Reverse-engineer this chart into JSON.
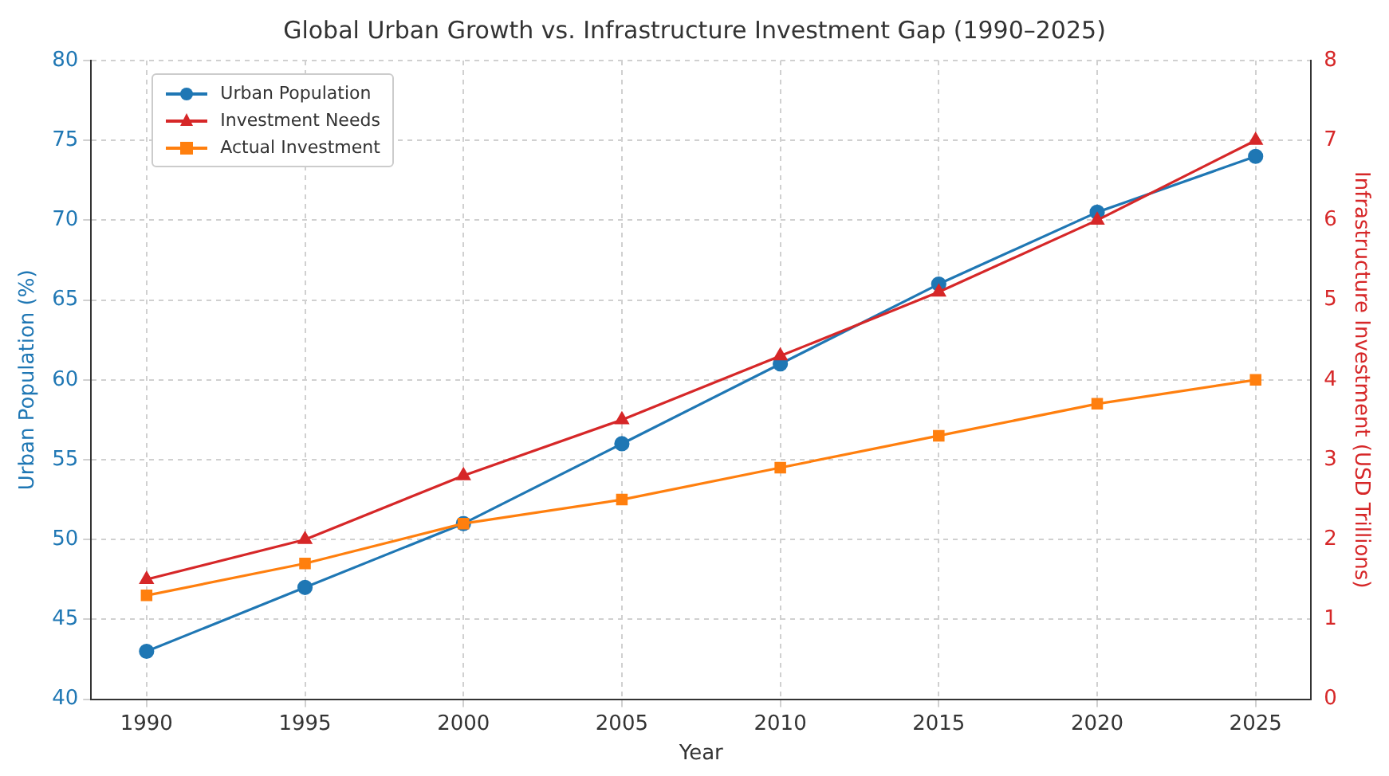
{
  "chart_data": {
    "type": "line",
    "title": "Global Urban Growth vs. Infrastructure Investment Gap (1990–2025)",
    "xlabel": "Year",
    "ylabel": "Urban Population (%)",
    "y2label": "Infrastructure Investment (USD Trillions)",
    "x": [
      1990,
      1995,
      2000,
      2005,
      2010,
      2015,
      2020,
      2025
    ],
    "xlim": [
      1988.25,
      2026.75
    ],
    "xticks": [
      1990,
      1995,
      2000,
      2005,
      2010,
      2015,
      2020,
      2025
    ],
    "ylim": [
      40,
      80
    ],
    "yticks": [
      40,
      45,
      50,
      55,
      60,
      65,
      70,
      75,
      80
    ],
    "y2lim": [
      0,
      8
    ],
    "y2ticks": [
      0,
      1,
      2,
      3,
      4,
      5,
      6,
      7,
      8
    ],
    "grid": true,
    "legend": "top left",
    "line_style": "solid",
    "series": [
      {
        "name": "Urban Population",
        "color": "#1f77b4",
        "marker": "circle",
        "values": [
          43,
          47,
          51,
          56,
          61,
          66,
          70.5,
          74
        ]
      },
      {
        "name": "Investment Needs",
        "color": "#d62728",
        "marker": "triangle",
        "axis": "y2",
        "values": [
          1.5,
          2.0,
          2.8,
          3.5,
          4.3,
          5.1,
          6.0,
          7.0
        ]
      },
      {
        "name": "Actual Investment",
        "color": "#ff7f0e",
        "marker": "square",
        "axis": "y2",
        "values": [
          1.3,
          1.7,
          2.2,
          2.5,
          2.9,
          3.3,
          3.7,
          4.0
        ]
      }
    ]
  }
}
